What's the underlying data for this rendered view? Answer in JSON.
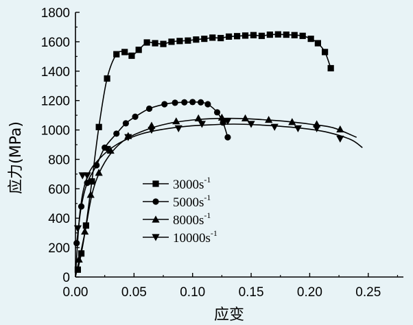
{
  "chart_data": {
    "type": "line",
    "xlabel": "应变",
    "ylabel": "应力(MPa)",
    "xlim": [
      0,
      0.28
    ],
    "ylim": [
      0,
      1800
    ],
    "xticks": [
      "0.00",
      "0.05",
      "0.10",
      "0.15",
      "0.20",
      "0.25"
    ],
    "xtick_values": [
      0,
      0.05,
      0.1,
      0.15,
      0.2,
      0.25
    ],
    "yticks": [
      "0",
      "200",
      "400",
      "600",
      "800",
      "1000",
      "1200",
      "1400",
      "1600",
      "1800"
    ],
    "ytick_values": [
      0,
      200,
      400,
      600,
      800,
      1000,
      1200,
      1400,
      1600,
      1800
    ],
    "legend_position": "center-left",
    "series": [
      {
        "name": "3000s",
        "sup": "-1",
        "marker": "square",
        "points": [
          [
            0.002,
            50
          ],
          [
            0.005,
            160
          ],
          [
            0.009,
            350
          ],
          [
            0.014,
            650
          ],
          [
            0.02,
            1020
          ],
          [
            0.027,
            1350
          ],
          [
            0.035,
            1515
          ],
          [
            0.042,
            1530
          ],
          [
            0.048,
            1505
          ],
          [
            0.054,
            1545
          ],
          [
            0.061,
            1595
          ],
          [
            0.068,
            1590
          ],
          [
            0.075,
            1585
          ],
          [
            0.082,
            1600
          ],
          [
            0.089,
            1605
          ],
          [
            0.096,
            1608
          ],
          [
            0.103,
            1615
          ],
          [
            0.11,
            1620
          ],
          [
            0.117,
            1628
          ],
          [
            0.124,
            1625
          ],
          [
            0.131,
            1635
          ],
          [
            0.138,
            1638
          ],
          [
            0.145,
            1642
          ],
          [
            0.152,
            1645
          ],
          [
            0.159,
            1640
          ],
          [
            0.166,
            1648
          ],
          [
            0.173,
            1650
          ],
          [
            0.18,
            1648
          ],
          [
            0.187,
            1645
          ],
          [
            0.194,
            1640
          ],
          [
            0.201,
            1620
          ],
          [
            0.207,
            1590
          ],
          [
            0.213,
            1530
          ],
          [
            0.218,
            1420
          ]
        ]
      },
      {
        "name": "5000s",
        "sup": "-1",
        "marker": "circle",
        "points": [
          [
            0.001,
            230
          ],
          [
            0.005,
            480
          ],
          [
            0.01,
            640
          ],
          [
            0.018,
            760
          ],
          [
            0.025,
            880
          ],
          [
            0.035,
            975
          ],
          [
            0.043,
            1045
          ],
          [
            0.051,
            1090
          ],
          [
            0.063,
            1145
          ],
          [
            0.076,
            1175
          ],
          [
            0.085,
            1185
          ],
          [
            0.093,
            1188
          ],
          [
            0.1,
            1190
          ],
          [
            0.107,
            1188
          ],
          [
            0.113,
            1175
          ],
          [
            0.121,
            1120
          ],
          [
            0.126,
            1050
          ],
          [
            0.13,
            950
          ]
        ]
      },
      {
        "name": "8000s",
        "sup": "-1",
        "marker": "triangle-up",
        "points": [
          [
            0.003,
            120
          ],
          [
            0.008,
            310
          ],
          [
            0.013,
            560
          ],
          [
            0.02,
            710
          ],
          [
            0.03,
            860
          ],
          [
            0.045,
            960
          ],
          [
            0.065,
            1030
          ],
          [
            0.086,
            1060
          ],
          [
            0.105,
            1080
          ],
          [
            0.125,
            1085
          ],
          [
            0.145,
            1080
          ],
          [
            0.165,
            1070
          ],
          [
            0.185,
            1055
          ],
          [
            0.206,
            1040
          ],
          [
            0.226,
            1005
          ]
        ],
        "curve": [
          [
            0.0,
            0
          ],
          [
            0.008,
            300
          ],
          [
            0.015,
            590
          ],
          [
            0.025,
            780
          ],
          [
            0.04,
            920
          ],
          [
            0.06,
            1000
          ],
          [
            0.08,
            1045
          ],
          [
            0.1,
            1068
          ],
          [
            0.12,
            1078
          ],
          [
            0.14,
            1078
          ],
          [
            0.16,
            1070
          ],
          [
            0.18,
            1058
          ],
          [
            0.2,
            1040
          ],
          [
            0.22,
            1015
          ],
          [
            0.24,
            950
          ]
        ]
      },
      {
        "name": "10000s",
        "sup": "-1",
        "marker": "triangle-down",
        "points": [
          [
            0.002,
            330
          ],
          [
            0.006,
            690
          ],
          [
            0.01,
            690
          ],
          [
            0.027,
            870
          ],
          [
            0.045,
            950
          ],
          [
            0.065,
            1000
          ],
          [
            0.088,
            1010
          ],
          [
            0.108,
            1040
          ],
          [
            0.13,
            1060
          ],
          [
            0.15,
            1040
          ],
          [
            0.17,
            1020
          ],
          [
            0.19,
            1010
          ],
          [
            0.206,
            1010
          ],
          [
            0.226,
            940
          ]
        ],
        "curve": [
          [
            0.0,
            0
          ],
          [
            0.004,
            450
          ],
          [
            0.01,
            680
          ],
          [
            0.02,
            800
          ],
          [
            0.035,
            900
          ],
          [
            0.055,
            970
          ],
          [
            0.075,
            1005
          ],
          [
            0.095,
            1025
          ],
          [
            0.115,
            1035
          ],
          [
            0.135,
            1040
          ],
          [
            0.155,
            1035
          ],
          [
            0.175,
            1025
          ],
          [
            0.195,
            1010
          ],
          [
            0.215,
            985
          ],
          [
            0.235,
            935
          ],
          [
            0.245,
            880
          ]
        ]
      }
    ]
  }
}
